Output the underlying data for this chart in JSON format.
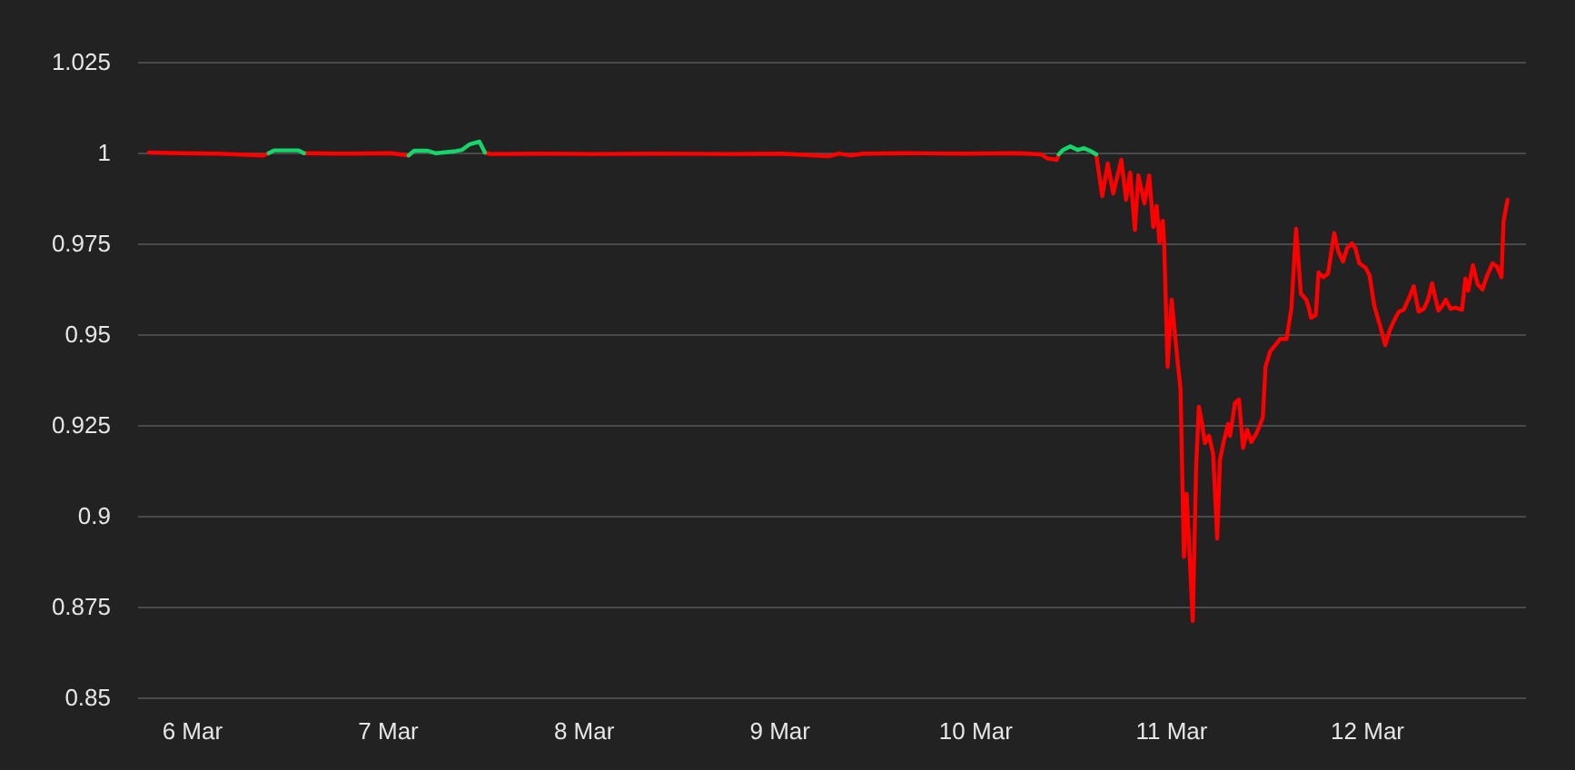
{
  "chart_data": {
    "type": "line",
    "grid": "y",
    "marker": "none",
    "line_style": "solid",
    "xlim": [
      "--03-05T17:20",
      "--03-12T19:25"
    ],
    "xticks": [
      {
        "value": "--03-06",
        "label": "6 Mar"
      },
      {
        "value": "--03-07",
        "label": "7 Mar"
      },
      {
        "value": "--03-08",
        "label": "8 Mar"
      },
      {
        "value": "--03-09",
        "label": "9 Mar"
      },
      {
        "value": "--03-10",
        "label": "10 Mar"
      },
      {
        "value": "--03-11",
        "label": "11 Mar"
      },
      {
        "value": "--03-12",
        "label": "12 Mar"
      }
    ],
    "ylim": [
      0.85,
      1.025
    ],
    "yticks": [
      0.85,
      0.875,
      0.9,
      0.925,
      0.95,
      0.975,
      1,
      1.025
    ],
    "x": [
      "--03-05T18:40",
      "--03-05T22:40",
      "--03-06T03:10",
      "--03-06T08:40",
      "--03-06T09:20",
      "--03-06T10:00",
      "--03-06T13:00",
      "--03-06T13:40",
      "--03-06T18:40",
      "--03-07T00:20",
      "--03-07T02:30",
      "--03-07T03:10",
      "--03-07T04:50",
      "--03-07T05:50",
      "--03-07T08:00",
      "--03-07T09:00",
      "--03-07T10:00",
      "--03-07T11:10",
      "--03-07T11:50",
      "--03-07T12:30",
      "--03-07T19:10",
      "--03-08T01:50",
      "--03-08T08:30",
      "--03-08T17:30",
      "--03-09T00:10",
      "--03-09T06:00",
      "--03-09T07:15",
      "--03-09T08:35",
      "--03-09T10:10",
      "--03-09T15:45",
      "--03-09T22:25",
      "--03-10T05:05",
      "--03-10T08:00",
      "--03-10T08:45",
      "--03-10T09:55",
      "--03-10T10:10",
      "--03-10T10:40",
      "--03-10T11:35",
      "--03-10T12:30",
      "--03-10T13:15",
      "--03-10T14:10",
      "--03-10T14:45",
      "--03-10T15:30",
      "--03-10T16:10",
      "--03-10T16:50",
      "--03-10T17:50",
      "--03-10T18:25",
      "--03-10T18:55",
      "--03-10T19:30",
      "--03-10T19:55",
      "--03-10T20:40",
      "--03-10T21:15",
      "--03-10T21:45",
      "--03-10T22:10",
      "--03-10T22:30",
      "--03-10T22:55",
      "--03-10T23:05",
      "--03-10T23:30",
      "--03-11T00:00",
      "--03-11T00:45",
      "--03-11T01:05",
      "--03-11T01:30",
      "--03-11T01:50",
      "--03-11T02:15",
      "--03-11T02:35",
      "--03-11T03:00",
      "--03-11T03:20",
      "--03-11T03:45",
      "--03-11T04:05",
      "--03-11T04:35",
      "--03-11T05:05",
      "--03-11T05:35",
      "--03-11T05:55",
      "--03-11T06:20",
      "--03-11T06:55",
      "--03-11T07:10",
      "--03-11T07:45",
      "--03-11T08:15",
      "--03-11T08:45",
      "--03-11T09:15",
      "--03-11T09:45",
      "--03-11T10:25",
      "--03-11T11:10",
      "--03-11T11:30",
      "--03-11T12:05",
      "--03-11T13:20",
      "--03-11T14:05",
      "--03-11T14:40",
      "--03-11T15:15",
      "--03-11T15:50",
      "--03-11T16:30",
      "--03-11T16:50",
      "--03-11T17:05",
      "--03-11T17:40",
      "--03-11T18:00",
      "--03-11T18:35",
      "--03-11T19:10",
      "--03-11T19:55",
      "--03-11T20:25",
      "--03-11T21:00",
      "--03-11T21:30",
      "--03-11T22:05",
      "--03-11T22:30",
      "--03-11T23:00",
      "--03-11T23:45",
      "--03-12T00:15",
      "--03-12T00:50",
      "--03-12T01:35",
      "--03-12T02:10",
      "--03-12T02:45",
      "--03-12T03:15",
      "--03-12T03:50",
      "--03-12T04:25",
      "--03-12T05:10",
      "--03-12T05:40",
      "--03-12T06:15",
      "--03-12T06:55",
      "--03-12T07:25",
      "--03-12T07:55",
      "--03-12T08:40",
      "--03-12T09:10",
      "--03-12T09:35",
      "--03-12T10:10",
      "--03-12T10:45",
      "--03-12T11:35",
      "--03-12T12:00",
      "--03-12T12:20",
      "--03-12T12:55",
      "--03-12T13:30",
      "--03-12T14:05",
      "--03-12T14:35",
      "--03-12T15:20",
      "--03-12T15:50",
      "--03-12T16:25",
      "--03-12T16:40",
      "--03-12T17:10"
    ],
    "series": [
      {
        "color": "#ff0000",
        "values": [
          1.0,
          0.9998,
          0.9997,
          0.9992,
          0.9998,
          null,
          null,
          0.9998,
          0.9997,
          0.9998,
          0.9992,
          null,
          null,
          null,
          null,
          null,
          null,
          null,
          1.0,
          0.9996,
          0.9997,
          0.9996,
          0.9997,
          0.9996,
          0.9997,
          0.999,
          0.9997,
          0.9992,
          0.9997,
          0.9998,
          0.9997,
          0.9998,
          0.9995,
          0.9984,
          0.998,
          0.9995,
          null,
          null,
          null,
          null,
          null,
          0.9995,
          0.988,
          0.997,
          0.9887,
          0.998,
          0.987,
          0.9945,
          0.9787,
          0.9937,
          0.986,
          0.9937,
          0.9795,
          0.9853,
          0.9753,
          0.9812,
          0.9745,
          0.941,
          0.9595,
          0.942,
          0.935,
          0.8887,
          0.906,
          0.887,
          0.871,
          0.9137,
          0.93,
          0.925,
          0.92,
          0.922,
          0.917,
          0.8937,
          0.9153,
          0.92,
          0.9253,
          0.922,
          0.931,
          0.932,
          0.9187,
          0.9237,
          0.9203,
          0.9228,
          0.927,
          0.941,
          0.9453,
          0.9487,
          0.9487,
          0.957,
          0.979,
          0.9612,
          0.9595,
          0.957,
          0.9545,
          0.9553,
          0.967,
          0.9657,
          0.9667,
          0.9778,
          0.9728,
          0.97,
          0.9737,
          0.975,
          0.9737,
          0.9695,
          0.9683,
          0.9662,
          0.9578,
          0.952,
          0.947,
          0.9512,
          0.9537,
          0.9562,
          0.9567,
          0.9603,
          0.9632,
          0.9562,
          0.957,
          0.9595,
          0.964,
          0.9565,
          0.9578,
          0.9595,
          0.957,
          0.9573,
          0.9567,
          0.9653,
          0.962,
          0.969,
          0.9637,
          0.9623,
          0.9657,
          0.9695,
          0.9687,
          0.9657,
          0.981,
          0.987
        ]
      },
      {
        "color": "#14d66a",
        "x": [
          "--03-06T09:20",
          "--03-06T10:00",
          "--03-06T13:00",
          "--03-06T13:40",
          "--03-06T18:40",
          "--03-07T02:30",
          "--03-07T03:10",
          "--03-07T04:50",
          "--03-07T05:50",
          "--03-07T08:00",
          "--03-07T09:00",
          "--03-07T10:00",
          "--03-07T11:10",
          "--03-07T11:50",
          "--03-07T12:30",
          "--03-10T10:10",
          "--03-10T10:40",
          "--03-10T11:35",
          "--03-10T12:30",
          "--03-10T13:15",
          "--03-10T14:10",
          "--03-10T14:45"
        ],
        "values": [
          0.9998,
          1.0006,
          1.0006,
          0.9998,
          null,
          0.9992,
          1.0005,
          1.0005,
          0.9998,
          1.0003,
          1.0007,
          1.0023,
          1.003,
          1.0,
          null,
          0.9995,
          1.0007,
          1.0017,
          1.0007,
          1.0012,
          1.0003,
          0.9995
        ]
      }
    ]
  }
}
